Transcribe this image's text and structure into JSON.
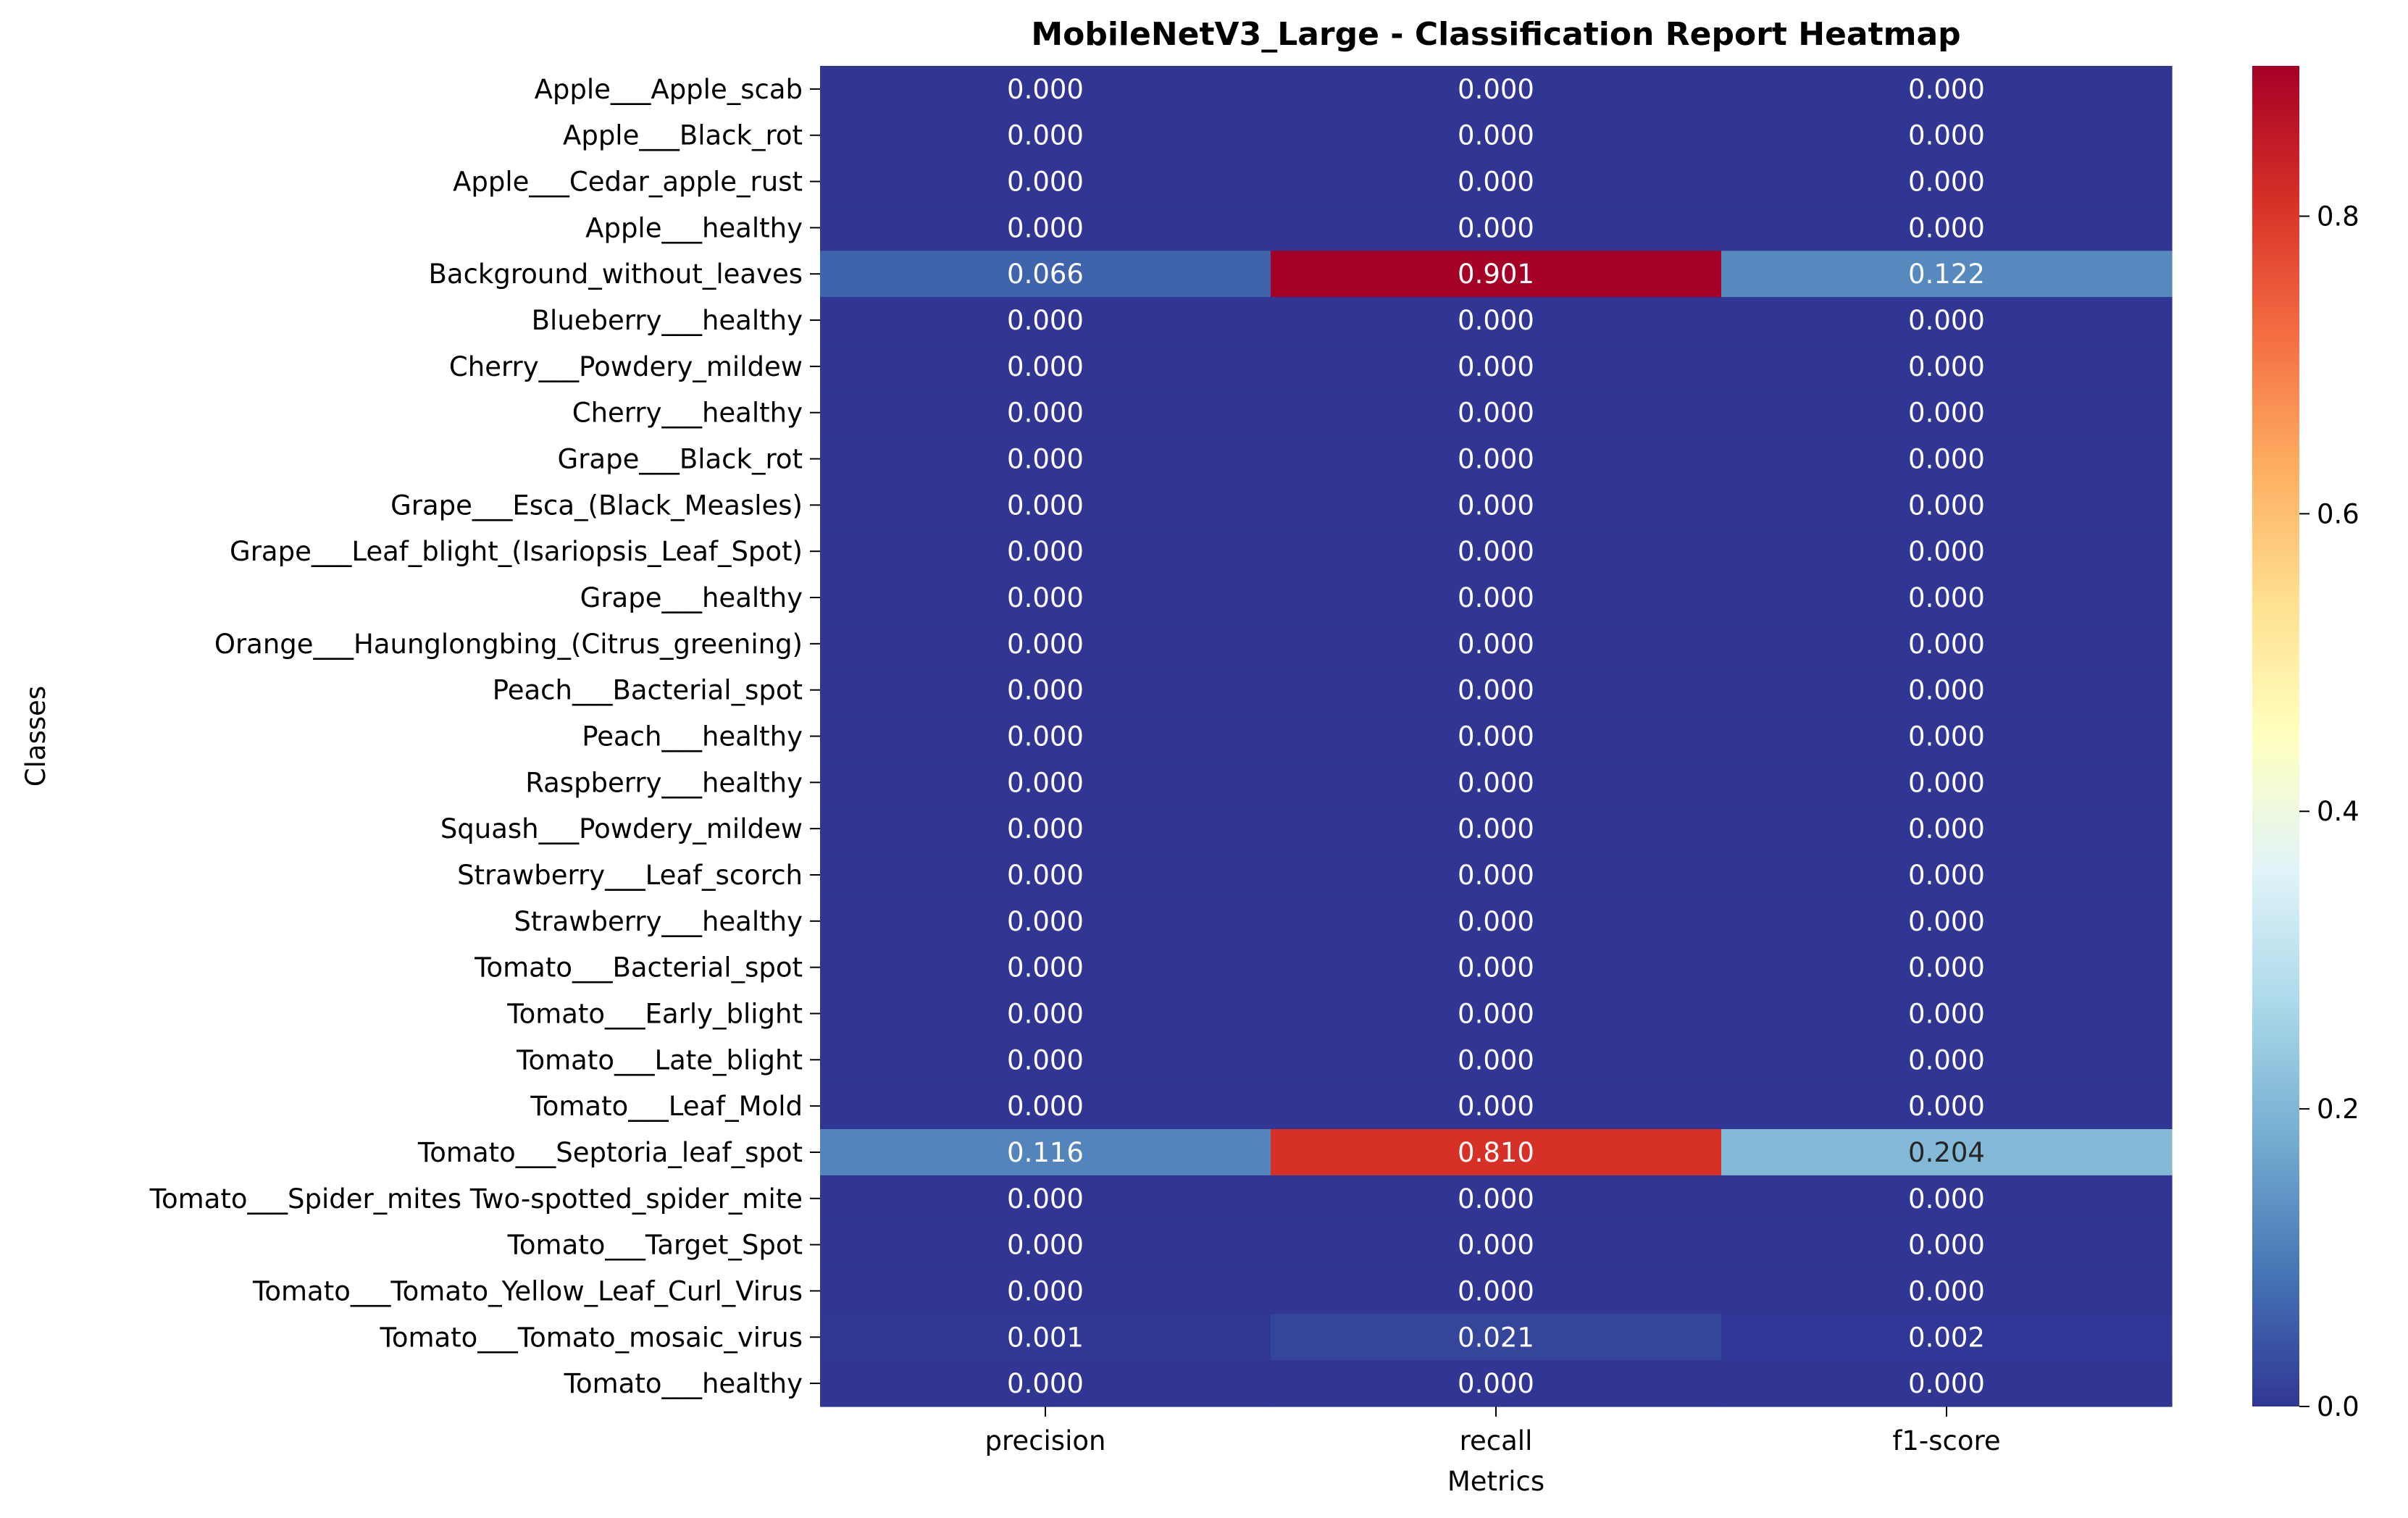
{
  "chart_data": {
    "type": "heatmap",
    "title": "MobileNetV3_Large - Classification Report Heatmap",
    "xlabel": "Metrics",
    "ylabel": "Classes",
    "x_categories": [
      "precision",
      "recall",
      "f1-score"
    ],
    "y_categories": [
      "Apple___Apple_scab",
      "Apple___Black_rot",
      "Apple___Cedar_apple_rust",
      "Apple___healthy",
      "Background_without_leaves",
      "Blueberry___healthy",
      "Cherry___Powdery_mildew",
      "Cherry___healthy",
      "Grape___Black_rot",
      "Grape___Esca_(Black_Measles)",
      "Grape___Leaf_blight_(Isariopsis_Leaf_Spot)",
      "Grape___healthy",
      "Orange___Haunglongbing_(Citrus_greening)",
      "Peach___Bacterial_spot",
      "Peach___healthy",
      "Raspberry___healthy",
      "Squash___Powdery_mildew",
      "Strawberry___Leaf_scorch",
      "Strawberry___healthy",
      "Tomato___Bacterial_spot",
      "Tomato___Early_blight",
      "Tomato___Late_blight",
      "Tomato___Leaf_Mold",
      "Tomato___Septoria_leaf_spot",
      "Tomato___Spider_mites Two-spotted_spider_mite",
      "Tomato___Target_Spot",
      "Tomato___Tomato_Yellow_Leaf_Curl_Virus",
      "Tomato___Tomato_mosaic_virus",
      "Tomato___healthy"
    ],
    "values": [
      [
        0.0,
        0.0,
        0.0
      ],
      [
        0.0,
        0.0,
        0.0
      ],
      [
        0.0,
        0.0,
        0.0
      ],
      [
        0.0,
        0.0,
        0.0
      ],
      [
        0.066,
        0.901,
        0.122
      ],
      [
        0.0,
        0.0,
        0.0
      ],
      [
        0.0,
        0.0,
        0.0
      ],
      [
        0.0,
        0.0,
        0.0
      ],
      [
        0.0,
        0.0,
        0.0
      ],
      [
        0.0,
        0.0,
        0.0
      ],
      [
        0.0,
        0.0,
        0.0
      ],
      [
        0.0,
        0.0,
        0.0
      ],
      [
        0.0,
        0.0,
        0.0
      ],
      [
        0.0,
        0.0,
        0.0
      ],
      [
        0.0,
        0.0,
        0.0
      ],
      [
        0.0,
        0.0,
        0.0
      ],
      [
        0.0,
        0.0,
        0.0
      ],
      [
        0.0,
        0.0,
        0.0
      ],
      [
        0.0,
        0.0,
        0.0
      ],
      [
        0.0,
        0.0,
        0.0
      ],
      [
        0.0,
        0.0,
        0.0
      ],
      [
        0.0,
        0.0,
        0.0
      ],
      [
        0.0,
        0.0,
        0.0
      ],
      [
        0.116,
        0.81,
        0.204
      ],
      [
        0.0,
        0.0,
        0.0
      ],
      [
        0.0,
        0.0,
        0.0
      ],
      [
        0.0,
        0.0,
        0.0
      ],
      [
        0.001,
        0.021,
        0.002
      ],
      [
        0.0,
        0.0,
        0.0
      ]
    ],
    "value_format": "0.000",
    "colormap": "RdYlBu_r",
    "colorbar": {
      "vmin": 0,
      "vmax": 0.901,
      "ticks": [
        0.0,
        0.2,
        0.4,
        0.6,
        0.8
      ],
      "tick_labels": [
        "0.0",
        "0.2",
        "0.4",
        "0.6",
        "0.8"
      ]
    },
    "grid": false,
    "legend": "colorbar-right"
  }
}
